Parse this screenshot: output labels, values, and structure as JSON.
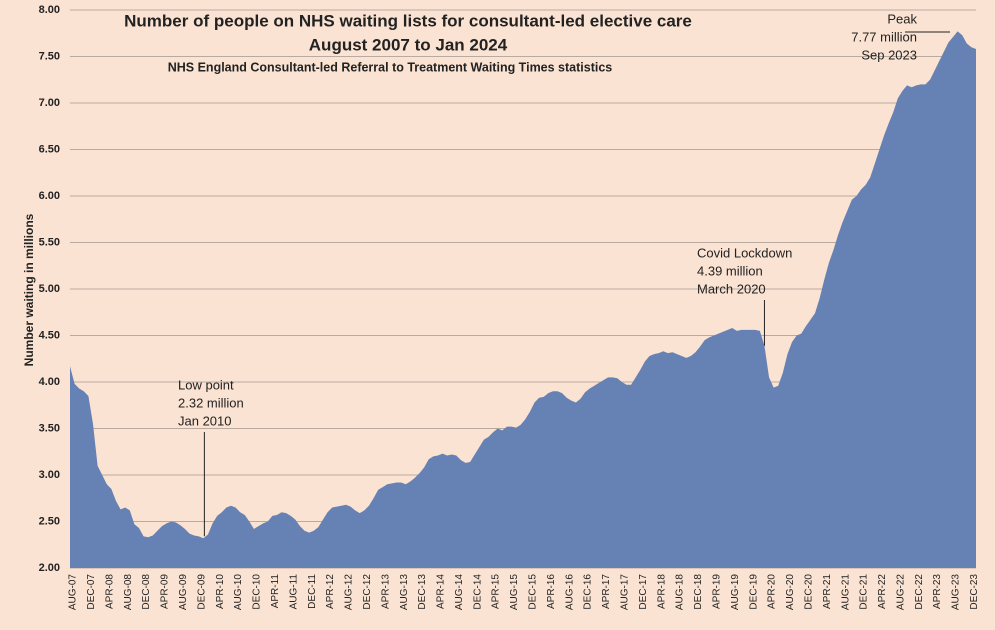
{
  "chart_data": {
    "type": "area",
    "title": [
      "Number of people on NHS waiting lists for consultant-led elective care",
      "August 2007 to Jan 2024"
    ],
    "subtitle": "NHS England Consultant-led Referral to Treatment Waiting Times statistics",
    "y_label": "Number waiting in millions",
    "color": "#6681b4",
    "grid": true,
    "ylim": [
      2,
      8
    ],
    "yticks": [
      {
        "value": 2,
        "label": "2.00"
      },
      {
        "value": 2.5,
        "label": "2.50"
      },
      {
        "value": 3,
        "label": "3.00"
      },
      {
        "value": 3.5,
        "label": "3.50"
      },
      {
        "value": 4,
        "label": "4.00"
      },
      {
        "value": 4.5,
        "label": "4.50"
      },
      {
        "value": 5,
        "label": "5.00"
      },
      {
        "value": 5.5,
        "label": "5.50"
      },
      {
        "value": 6,
        "label": "6.00"
      },
      {
        "value": 6.5,
        "label": "6.50"
      },
      {
        "value": 7,
        "label": "7.00"
      },
      {
        "value": 7.5,
        "label": "7.50"
      },
      {
        "value": 8,
        "label": "8.00"
      }
    ],
    "categories": [
      "AUG-07",
      null,
      null,
      null,
      "DEC-07",
      null,
      null,
      null,
      "APR-08",
      null,
      null,
      null,
      "AUG-08",
      null,
      null,
      null,
      "DEC-08",
      null,
      null,
      null,
      "APR-09",
      null,
      null,
      null,
      "AUG-09",
      null,
      null,
      null,
      "DEC-09",
      null,
      null,
      null,
      "APR-10",
      null,
      null,
      null,
      "AUG-10",
      null,
      null,
      null,
      "DEC-10",
      null,
      null,
      null,
      "APR-11",
      null,
      null,
      null,
      "AUG-11",
      null,
      null,
      null,
      "DEC-11",
      null,
      null,
      null,
      "APR-12",
      null,
      null,
      null,
      "AUG-12",
      null,
      null,
      null,
      "DEC-12",
      null,
      null,
      null,
      "APR-13",
      null,
      null,
      null,
      "AUG-13",
      null,
      null,
      null,
      "DEC-13",
      null,
      null,
      null,
      "APR-14",
      null,
      null,
      null,
      "AUG-14",
      null,
      null,
      null,
      "DEC-14",
      null,
      null,
      null,
      "APR-15",
      null,
      null,
      null,
      "AUG-15",
      null,
      null,
      null,
      "DEC-15",
      null,
      null,
      null,
      "APR-16",
      null,
      null,
      null,
      "AUG-16",
      null,
      null,
      null,
      "DEC-16",
      null,
      null,
      null,
      "APR-17",
      null,
      null,
      null,
      "AUG-17",
      null,
      null,
      null,
      "DEC-17",
      null,
      null,
      null,
      "APR-18",
      null,
      null,
      null,
      "AUG-18",
      null,
      null,
      null,
      "DEC-18",
      null,
      null,
      null,
      "APR-19",
      null,
      null,
      null,
      "AUG-19",
      null,
      null,
      null,
      "DEC-19",
      null,
      null,
      null,
      "APR-20",
      null,
      null,
      null,
      "AUG-20",
      null,
      null,
      null,
      "DEC-20",
      null,
      null,
      null,
      "APR-21",
      null,
      null,
      null,
      "AUG-21",
      null,
      null,
      null,
      "DEC-21",
      null,
      null,
      null,
      "APR-22",
      null,
      null,
      null,
      "AUG-22",
      null,
      null,
      null,
      "DEC-22",
      null,
      null,
      null,
      "APR-23",
      null,
      null,
      null,
      "AUG-23",
      null,
      null,
      null,
      "DEC-23",
      null
    ],
    "values": [
      4.17,
      3.98,
      3.93,
      3.9,
      3.85,
      3.55,
      3.1,
      3.0,
      2.9,
      2.85,
      2.72,
      2.63,
      2.65,
      2.62,
      2.47,
      2.43,
      2.34,
      2.33,
      2.35,
      2.4,
      2.45,
      2.48,
      2.5,
      2.49,
      2.46,
      2.42,
      2.37,
      2.35,
      2.34,
      2.32,
      2.36,
      2.48,
      2.56,
      2.6,
      2.65,
      2.67,
      2.65,
      2.6,
      2.57,
      2.5,
      2.42,
      2.45,
      2.48,
      2.5,
      2.56,
      2.57,
      2.6,
      2.59,
      2.56,
      2.52,
      2.45,
      2.4,
      2.38,
      2.4,
      2.44,
      2.52,
      2.6,
      2.65,
      2.66,
      2.67,
      2.68,
      2.66,
      2.62,
      2.59,
      2.62,
      2.67,
      2.75,
      2.84,
      2.87,
      2.9,
      2.91,
      2.92,
      2.92,
      2.9,
      2.93,
      2.97,
      3.02,
      3.08,
      3.17,
      3.2,
      3.21,
      3.23,
      3.21,
      3.22,
      3.21,
      3.16,
      3.13,
      3.14,
      3.22,
      3.3,
      3.38,
      3.41,
      3.46,
      3.5,
      3.48,
      3.52,
      3.52,
      3.51,
      3.54,
      3.6,
      3.68,
      3.78,
      3.83,
      3.84,
      3.88,
      3.9,
      3.9,
      3.88,
      3.83,
      3.8,
      3.78,
      3.82,
      3.89,
      3.93,
      3.96,
      3.99,
      4.02,
      4.05,
      4.05,
      4.04,
      4.0,
      3.97,
      3.97,
      4.05,
      4.13,
      4.22,
      4.28,
      4.3,
      4.31,
      4.33,
      4.31,
      4.32,
      4.3,
      4.28,
      4.26,
      4.28,
      4.32,
      4.38,
      4.45,
      4.48,
      4.5,
      4.52,
      4.54,
      4.56,
      4.58,
      4.55,
      4.56,
      4.56,
      4.56,
      4.56,
      4.55,
      4.39,
      4.05,
      3.94,
      3.96,
      4.1,
      4.3,
      4.43,
      4.5,
      4.52,
      4.6,
      4.67,
      4.74,
      4.9,
      5.1,
      5.28,
      5.42,
      5.58,
      5.72,
      5.84,
      5.96,
      6.0,
      6.07,
      6.12,
      6.2,
      6.35,
      6.5,
      6.65,
      6.78,
      6.9,
      7.05,
      7.13,
      7.19,
      7.17,
      7.19,
      7.2,
      7.2,
      7.25,
      7.35,
      7.45,
      7.55,
      7.65,
      7.71,
      7.77,
      7.73,
      7.64,
      7.6,
      7.58
    ],
    "annotations": [
      {
        "lines": [
          "Low point",
          "2.32 million",
          "Jan 2010"
        ]
      },
      {
        "lines": [
          "Covid Lockdown",
          "4.39 million",
          "March 2020"
        ]
      },
      {
        "lines": [
          "Peak",
          "7.77 million",
          "Sep 2023"
        ]
      }
    ]
  }
}
